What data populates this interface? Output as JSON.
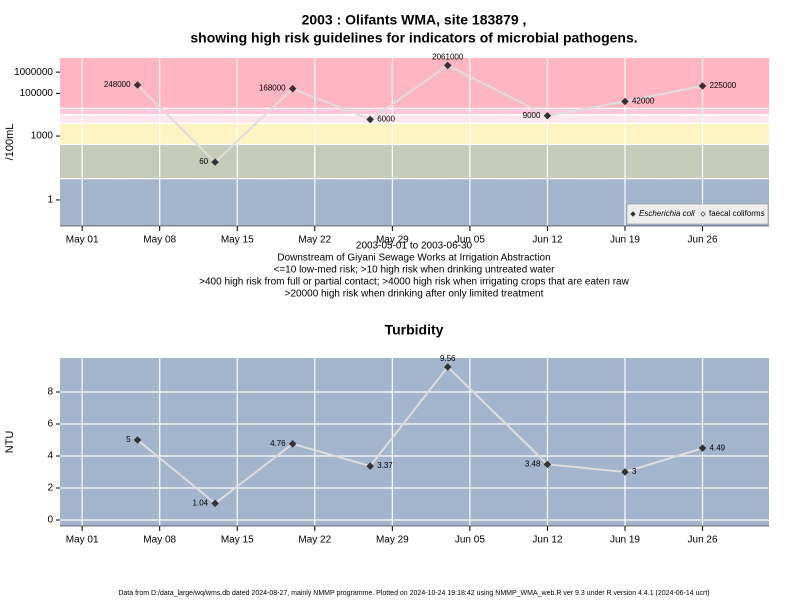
{
  "chart_data": [
    {
      "type": "line",
      "title": "2003 : Olifants WMA, site 183879 ,",
      "subtitle": "showing high risk guidelines for indicators of microbial pathogens.",
      "notes": [
        "2003-05-01 to 2003-06-30",
        "Downstream of Giyani Sewage Works at Irrigation Abstraction",
        "<=10 low-med risk; >10 high risk when drinking untreated water",
        ">400 high risk from full or partial contact; >4000 high risk when irrigating crops that are eaten raw",
        ">20000 high risk when drinking after only limited treatment"
      ],
      "ylabel": "/100mL",
      "log_y": true,
      "ylim": [
        0.06,
        4600000
      ],
      "yticks": [
        1,
        1000,
        100000,
        1000000
      ],
      "xlim": [
        "2003-04-29",
        "2003-07-02"
      ],
      "xticks": [
        {
          "value": "2003-05-01",
          "label": "May 01"
        },
        {
          "value": "2003-05-08",
          "label": "May 08"
        },
        {
          "value": "2003-05-15",
          "label": "May 15"
        },
        {
          "value": "2003-05-22",
          "label": "May 22"
        },
        {
          "value": "2003-05-29",
          "label": "May 29"
        },
        {
          "value": "2003-06-05",
          "label": "Jun 05"
        },
        {
          "value": "2003-06-12",
          "label": "Jun 12"
        },
        {
          "value": "2003-06-19",
          "label": "Jun 19"
        },
        {
          "value": "2003-06-26",
          "label": "Jun 26"
        }
      ],
      "x": [
        "2003-05-06",
        "2003-05-13",
        "2003-05-20",
        "2003-05-27",
        "2003-06-03",
        "2003-06-12",
        "2003-06-19",
        "2003-06-26"
      ],
      "series": [
        {
          "name": "Escherichia coli",
          "color": "#333333",
          "line_color": "#dddddd",
          "marker": "filled",
          "values": [
            248000,
            60,
            168000,
            6000,
            2061000,
            9000,
            42000,
            225000
          ]
        },
        {
          "name": "faecal coliforms",
          "color": "#333333",
          "line_color": "#dddddd",
          "marker": "open",
          "values": [
            null,
            null,
            null,
            null,
            null,
            null,
            null,
            null
          ]
        }
      ],
      "bands": [
        {
          "from": 0.06,
          "to": 10,
          "color": "#a2b5cd"
        },
        {
          "from": 10,
          "to": 400,
          "color": "#c5cbb8"
        },
        {
          "from": 400,
          "to": 4000,
          "color": "#fdf3c3"
        },
        {
          "from": 4000,
          "to": 10000,
          "color": "#fde6ee"
        },
        {
          "from": 10000,
          "to": 20000,
          "color": "#fdc8dc"
        },
        {
          "from": 20000,
          "to": 4600000,
          "color": "#ffb6c1"
        }
      ],
      "grid": "x",
      "legend": "bottom-right"
    },
    {
      "type": "line",
      "title": "Turbidity",
      "ylabel": "NTU",
      "ylim": [
        -0.375,
        10.125
      ],
      "yticks": [
        0,
        2,
        4,
        6,
        8
      ],
      "xlim": [
        "2003-04-29",
        "2003-07-02"
      ],
      "xticks": [
        {
          "value": "2003-05-01",
          "label": "May 01"
        },
        {
          "value": "2003-05-08",
          "label": "May 08"
        },
        {
          "value": "2003-05-15",
          "label": "May 15"
        },
        {
          "value": "2003-05-22",
          "label": "May 22"
        },
        {
          "value": "2003-05-29",
          "label": "May 29"
        },
        {
          "value": "2003-06-05",
          "label": "Jun 05"
        },
        {
          "value": "2003-06-12",
          "label": "Jun 12"
        },
        {
          "value": "2003-06-19",
          "label": "Jun 19"
        },
        {
          "value": "2003-06-26",
          "label": "Jun 26"
        }
      ],
      "x": [
        "2003-05-06",
        "2003-05-13",
        "2003-05-20",
        "2003-05-27",
        "2003-06-03",
        "2003-06-12",
        "2003-06-19",
        "2003-06-26"
      ],
      "values": [
        5,
        1.04,
        4.76,
        3.37,
        9.56,
        3.48,
        3,
        4.49
      ],
      "color": "#333333",
      "line_color": "#dddddd",
      "background": "#a2b5cd",
      "grid": "both"
    }
  ],
  "footer": "Data from D:/data_large/wq/wms.db dated 2024-08-27, mainly NMMP programme. Plotted on 2024-10-24 19:18:42 using NMMP_WMA_web.R ver 9.3 under R version 4.4.1 (2024-06-14 ucrt)"
}
